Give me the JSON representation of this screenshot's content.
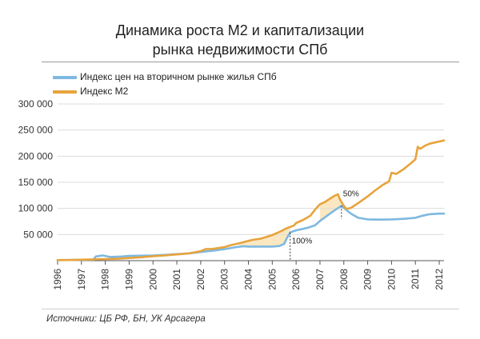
{
  "title_line1": "Динамика роста М2 и капитализации",
  "title_line2": "рынка недвижимости СПб",
  "source": "Источники: ЦБ РФ, БН, УК Арсагера",
  "colors": {
    "m2": "#e8a33c",
    "housing": "#7db8e0",
    "fill": "#fbe7c2",
    "grid": "#dcdcdc",
    "axis": "#555555",
    "annotation": "#333333"
  },
  "chart_data": {
    "type": "line",
    "title": "Динамика роста М2 и капитализации рынка недвижимости СПб",
    "xlabel": "",
    "ylabel": "",
    "xlim": [
      1996,
      2012.2
    ],
    "ylim": [
      0,
      300000
    ],
    "x_ticks": [
      "1996",
      "1997",
      "1998",
      "1999",
      "2000",
      "2001",
      "2002",
      "2003",
      "2004",
      "2005",
      "2006",
      "2007",
      "2008",
      "2009",
      "2010",
      "2011",
      "2012"
    ],
    "y_ticks": [
      {
        "value": 50000,
        "label": "50 000"
      },
      {
        "value": 100000,
        "label": "100 000"
      },
      {
        "value": 150000,
        "label": "150 000"
      },
      {
        "value": 200000,
        "label": "200 000"
      },
      {
        "value": 250000,
        "label": "250 000"
      },
      {
        "value": 300000,
        "label": "300 000"
      }
    ],
    "grid": true,
    "legend_position": "top-left",
    "series": [
      {
        "name": "Индекс цен на вторичном рынке жилья СПб",
        "color": "#7db8e0",
        "points": [
          [
            1996.0,
            1000
          ],
          [
            1997.0,
            1500
          ],
          [
            1997.5,
            2000
          ],
          [
            1997.6,
            8000
          ],
          [
            1997.9,
            10000
          ],
          [
            1998.2,
            7000
          ],
          [
            1998.7,
            8000
          ],
          [
            1999.0,
            9000
          ],
          [
            1999.5,
            9500
          ],
          [
            2000.0,
            10000
          ],
          [
            2000.5,
            11000
          ],
          [
            2001.0,
            12500
          ],
          [
            2001.5,
            14000
          ],
          [
            2002.0,
            16500
          ],
          [
            2002.5,
            19000
          ],
          [
            2003.0,
            22000
          ],
          [
            2003.5,
            26000
          ],
          [
            2003.8,
            27500
          ],
          [
            2004.0,
            27000
          ],
          [
            2004.5,
            27000
          ],
          [
            2005.0,
            27000
          ],
          [
            2005.3,
            28000
          ],
          [
            2005.5,
            32000
          ],
          [
            2005.6,
            42000
          ],
          [
            2005.75,
            54000
          ],
          [
            2006.0,
            58000
          ],
          [
            2006.5,
            63000
          ],
          [
            2006.8,
            68000
          ],
          [
            2007.0,
            76000
          ],
          [
            2007.3,
            86000
          ],
          [
            2007.6,
            96000
          ],
          [
            2007.8,
            102000
          ],
          [
            2007.9,
            105000
          ],
          [
            2008.0,
            101000
          ],
          [
            2008.3,
            90000
          ],
          [
            2008.6,
            82000
          ],
          [
            2009.0,
            79000
          ],
          [
            2009.5,
            78500
          ],
          [
            2010.0,
            79000
          ],
          [
            2010.5,
            80000
          ],
          [
            2011.0,
            82000
          ],
          [
            2011.3,
            86000
          ],
          [
            2011.6,
            89000
          ],
          [
            2012.0,
            90000
          ],
          [
            2012.2,
            90000
          ]
        ]
      },
      {
        "name": "Индекс М2",
        "color": "#e8a33c",
        "points": [
          [
            1996.0,
            1000
          ],
          [
            1996.5,
            1300
          ],
          [
            1997.0,
            1800
          ],
          [
            1997.5,
            2500
          ],
          [
            1998.0,
            3000
          ],
          [
            1998.5,
            3500
          ],
          [
            1999.0,
            5000
          ],
          [
            1999.5,
            6500
          ],
          [
            2000.0,
            8500
          ],
          [
            2000.5,
            10000
          ],
          [
            2001.0,
            12000
          ],
          [
            2001.5,
            14000
          ],
          [
            2002.0,
            18000
          ],
          [
            2002.2,
            22000
          ],
          [
            2002.5,
            22500
          ],
          [
            2003.0,
            26000
          ],
          [
            2003.3,
            30000
          ],
          [
            2003.6,
            33000
          ],
          [
            2004.0,
            38000
          ],
          [
            2004.2,
            40000
          ],
          [
            2004.5,
            42000
          ],
          [
            2004.8,
            46000
          ],
          [
            2005.0,
            49000
          ],
          [
            2005.3,
            55000
          ],
          [
            2005.6,
            62000
          ],
          [
            2005.9,
            67000
          ],
          [
            2006.0,
            72000
          ],
          [
            2006.3,
            78000
          ],
          [
            2006.6,
            86000
          ],
          [
            2006.8,
            98000
          ],
          [
            2007.0,
            108000
          ],
          [
            2007.2,
            112000
          ],
          [
            2007.4,
            118000
          ],
          [
            2007.6,
            124000
          ],
          [
            2007.75,
            127000
          ],
          [
            2007.85,
            116000
          ],
          [
            2008.0,
            105000
          ],
          [
            2008.1,
            99000
          ],
          [
            2008.3,
            101000
          ],
          [
            2008.6,
            110000
          ],
          [
            2009.0,
            123000
          ],
          [
            2009.3,
            134000
          ],
          [
            2009.6,
            144000
          ],
          [
            2009.9,
            152000
          ],
          [
            2010.0,
            168000
          ],
          [
            2010.2,
            166000
          ],
          [
            2010.5,
            175000
          ],
          [
            2010.8,
            186000
          ],
          [
            2011.0,
            194000
          ],
          [
            2011.1,
            218000
          ],
          [
            2011.2,
            214000
          ],
          [
            2011.4,
            220000
          ],
          [
            2011.6,
            224000
          ],
          [
            2011.8,
            226000
          ],
          [
            2012.0,
            228000
          ],
          [
            2012.2,
            230000
          ]
        ]
      }
    ],
    "shaded_areas": [
      {
        "from": 2003.6,
        "to": 2005.75,
        "description": "gap between М2 and housing index"
      },
      {
        "from": 2007.0,
        "to": 2007.9,
        "description": "gap between М2 and housing index"
      }
    ],
    "annotations": [
      {
        "text": "100%",
        "x": 2005.75,
        "y_top": 54000,
        "y_bottom": 0
      },
      {
        "text": "50%",
        "x": 2007.9,
        "y_top": 105000,
        "y_bottom": 80000
      }
    ]
  }
}
